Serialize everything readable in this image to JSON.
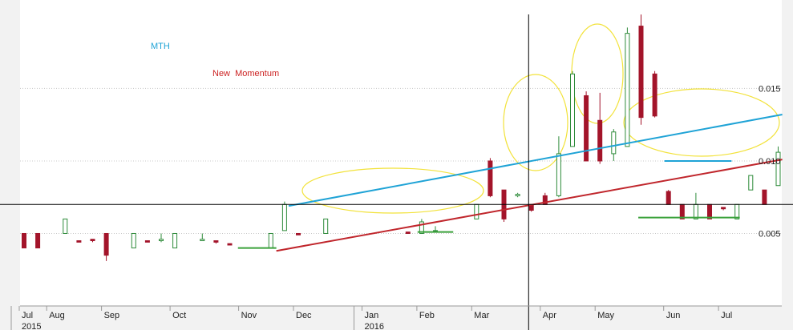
{
  "chart_data": {
    "type": "candlestick",
    "categories": [
      "Jul",
      null,
      "Aug",
      null,
      null,
      null,
      "Sep",
      null,
      null,
      null,
      null,
      "Oct",
      null,
      null,
      null,
      null,
      "Nov",
      null,
      null,
      null,
      "Dec",
      null,
      null,
      null,
      null,
      "Jan",
      null,
      null,
      null,
      "Feb",
      null,
      null,
      null,
      "Mar",
      null,
      null,
      null,
      null,
      "Apr",
      null,
      null,
      null,
      "May",
      null,
      null,
      null,
      null,
      "Jun",
      null,
      null,
      null,
      "Jul",
      null,
      null,
      null,
      null
    ],
    "year_labels": [
      "2015",
      null,
      null,
      null,
      null,
      null,
      null,
      null,
      null,
      null,
      null,
      null,
      null,
      null,
      null,
      null,
      null,
      null,
      null,
      null,
      null,
      null,
      null,
      null,
      null,
      "2016",
      null,
      null,
      null,
      null,
      null,
      null,
      null,
      null,
      null,
      null,
      null,
      null,
      null,
      null,
      null,
      null,
      null,
      null,
      null,
      null,
      null,
      null,
      null,
      null,
      null,
      null,
      null,
      null,
      null,
      null
    ],
    "open": [
      0.005,
      0.005,
      null,
      0.005,
      0.0045,
      0.0046,
      0.005,
      null,
      0.004,
      0.0045,
      0.0045,
      0.004,
      null,
      0.0045,
      0.0045,
      0.0043,
      null,
      null,
      0.004,
      0.0052,
      0.005,
      null,
      0.005,
      null,
      null,
      null,
      null,
      null,
      0.0051,
      0.005,
      0.0052,
      null,
      null,
      0.006,
      0.01,
      0.008,
      0.0076,
      0.007,
      0.0076,
      0.0076,
      0.011,
      0.0145,
      0.0128,
      0.0105,
      0.011,
      0.0193,
      0.016,
      0.0079,
      0.007,
      0.006,
      0.007,
      0.0068,
      0.006,
      0.008,
      0.008,
      0.0083
    ],
    "high": [
      0.005,
      0.005,
      null,
      0.006,
      0.0045,
      0.0046,
      0.005,
      null,
      0.005,
      0.0045,
      0.005,
      0.005,
      null,
      0.005,
      0.0045,
      0.0043,
      null,
      null,
      0.005,
      0.0072,
      0.005,
      null,
      0.006,
      null,
      null,
      null,
      null,
      null,
      0.0051,
      0.006,
      0.0055,
      null,
      null,
      0.007,
      0.0102,
      0.008,
      0.0078,
      0.007,
      0.0078,
      0.0117,
      0.0162,
      0.0148,
      0.0147,
      0.0122,
      0.0192,
      0.0201,
      0.0162,
      0.008,
      0.007,
      0.0078,
      0.007,
      0.0068,
      0.007,
      0.009,
      0.008,
      0.011
    ],
    "low": [
      0.004,
      0.004,
      null,
      0.005,
      0.0044,
      0.0044,
      0.0031,
      null,
      0.004,
      0.0044,
      0.0044,
      0.004,
      null,
      0.0045,
      0.0043,
      0.0042,
      null,
      null,
      0.004,
      0.0052,
      0.0049,
      null,
      0.005,
      null,
      null,
      null,
      null,
      null,
      0.005,
      0.005,
      0.0051,
      null,
      null,
      0.006,
      0.0075,
      0.0058,
      0.0075,
      0.0065,
      0.007,
      0.0075,
      0.011,
      0.01,
      0.0098,
      0.01,
      0.011,
      0.0125,
      0.013,
      0.007,
      0.006,
      0.006,
      0.006,
      0.0066,
      0.006,
      0.008,
      0.007,
      0.0083
    ],
    "close": [
      0.004,
      0.004,
      null,
      0.006,
      0.0044,
      0.0045,
      0.0035,
      null,
      0.005,
      0.0044,
      0.0046,
      0.005,
      null,
      0.0046,
      0.0044,
      0.0042,
      null,
      null,
      0.005,
      0.007,
      0.0049,
      null,
      0.006,
      null,
      null,
      null,
      null,
      null,
      0.005,
      0.0058,
      0.0052,
      null,
      null,
      0.007,
      0.0076,
      0.006,
      0.0077,
      0.0066,
      0.007,
      0.0105,
      0.016,
      0.01,
      0.01,
      0.012,
      0.0188,
      0.013,
      0.0131,
      0.007,
      0.006,
      0.007,
      0.006,
      0.0067,
      0.007,
      0.009,
      0.007,
      0.0106
    ],
    "up_color": "#2e8b3a",
    "down_color": "#a3142a",
    "ylim": [
      0,
      0.0211
    ],
    "yticks": [
      0.005,
      {
        "value": 0.01,
        "label": "0.010"
      },
      0.015
    ],
    "grid": true,
    "trendlines": [
      {
        "color": "#1fa3d6",
        "x": [
          19.3,
          55.3
        ],
        "values": [
          0.0069,
          0.0132
        ]
      },
      {
        "color": "#c0262c",
        "x": [
          18.4,
          55.3
        ],
        "values": [
          0.0038,
          0.0101
        ]
      },
      {
        "color": "#3aa13a",
        "x": [
          15.6,
          18.4
        ],
        "values": [
          0.004,
          0.004
        ]
      },
      {
        "color": "#3aa13a",
        "x": [
          28.7,
          31.3
        ],
        "values": [
          0.0051,
          0.0051
        ]
      },
      {
        "color": "#3aa13a",
        "x": [
          44.8,
          52.2
        ],
        "values": [
          0.0061,
          0.0061
        ]
      },
      {
        "color": "#1fa3d6",
        "x": [
          46.7,
          51.6
        ],
        "values": [
          0.01,
          0.01
        ]
      }
    ],
    "crosshair": {
      "x": 36.8,
      "y": 0.007
    },
    "annotations": [
      {
        "text": "MTH",
        "color": "#1fa3d6"
      },
      {
        "text": "New  Momentum",
        "color": "#cc2222"
      }
    ]
  }
}
